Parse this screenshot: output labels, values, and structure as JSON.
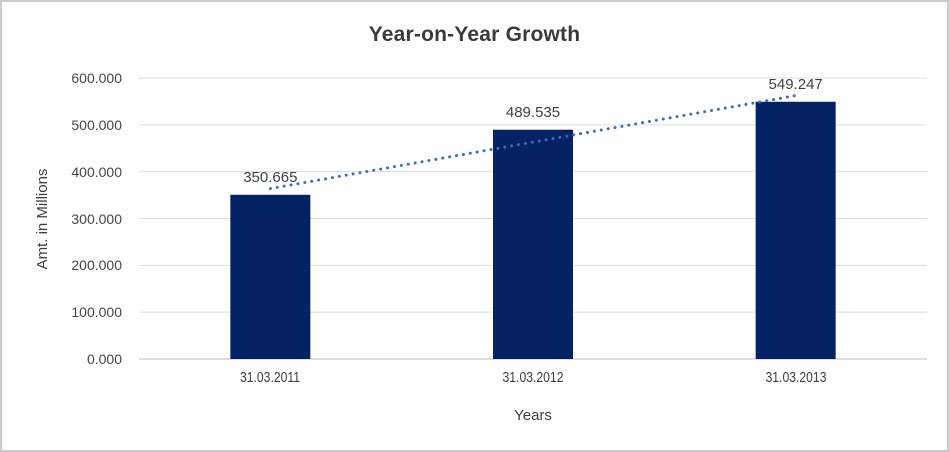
{
  "chart_data": {
    "type": "bar",
    "title": "Year-on-Year Growth",
    "xlabel": "Years",
    "ylabel": "Amt. in Millions",
    "categories": [
      "31.03.2011",
      "31.03.2012",
      "31.03.2013"
    ],
    "values": [
      350.665,
      489.535,
      549.247
    ],
    "data_labels": [
      "350.665",
      "489.535",
      "549.247"
    ],
    "ylim": [
      0,
      600
    ],
    "ytick_step": 100,
    "ytick_labels": [
      "0.000",
      "100.000",
      "200.000",
      "300.000",
      "400.000",
      "500.000",
      "600.000"
    ],
    "grid": true,
    "legend": "none",
    "trendline": {
      "type": "linear",
      "style": "dotted",
      "fit_values": [
        363.858,
        463.149,
        562.44
      ]
    },
    "colors": {
      "bar_fill": "#042264",
      "trendline": "#3e6cb5",
      "gridline": "#dcdcdc",
      "axis_line": "#d3d3d3",
      "title_text": "#3a3a3a",
      "label_text": "#404040"
    }
  }
}
